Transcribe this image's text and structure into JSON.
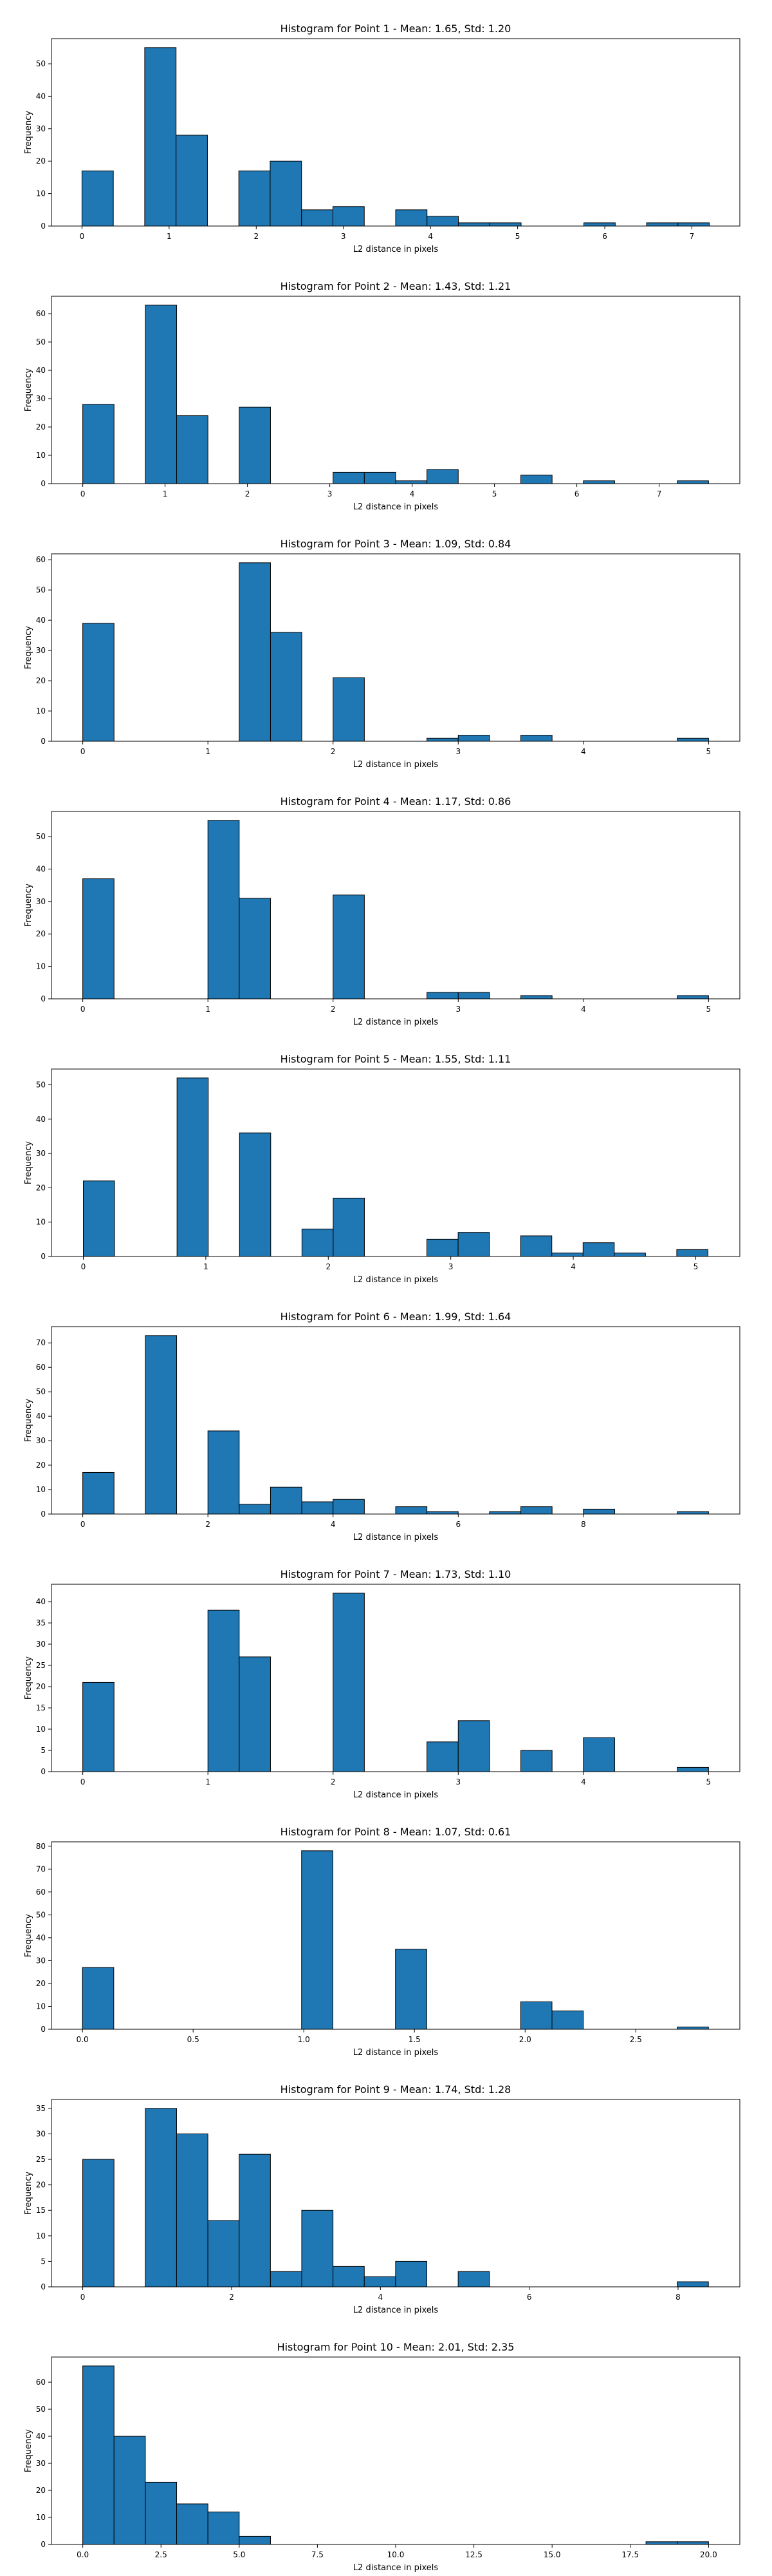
{
  "bar_color": "#1f77b4",
  "edge_color": "#000000",
  "chart_data": [
    {
      "type": "bar",
      "title": "Histogram for Point 1 - Mean: 1.65, Std: 1.20",
      "xlabel": "L2 distance in pixels",
      "ylabel": "Frequency",
      "grid": false,
      "xlim": [
        -0.35,
        7.55
      ],
      "ylim": [
        0,
        57.75
      ],
      "xticks": [
        0,
        1,
        2,
        3,
        4,
        5,
        6,
        7
      ],
      "yticks": [
        0,
        10,
        20,
        30,
        40,
        50
      ],
      "bin_edges": [
        0,
        0.36,
        0.72,
        1.08,
        1.44,
        1.8,
        2.16,
        2.52,
        2.88,
        3.24,
        3.6,
        3.96,
        4.32,
        4.68,
        5.04,
        5.4,
        5.76,
        6.12,
        6.48,
        6.84,
        7.2
      ],
      "counts": [
        17,
        0,
        55,
        28,
        0,
        17,
        20,
        5,
        6,
        0,
        5,
        3,
        1,
        1,
        0,
        0,
        1,
        0,
        1,
        1
      ]
    },
    {
      "type": "bar",
      "title": "Histogram for Point 2 - Mean: 1.43, Std: 1.21",
      "xlabel": "L2 distance in pixels",
      "ylabel": "Frequency",
      "grid": false,
      "xlim": [
        -0.38,
        7.98
      ],
      "ylim": [
        0,
        66.15
      ],
      "xticks": [
        0,
        1,
        2,
        3,
        4,
        5,
        6,
        7
      ],
      "yticks": [
        0,
        10,
        20,
        30,
        40,
        50,
        60
      ],
      "bin_edges": [
        0,
        0.38,
        0.76,
        1.14,
        1.52,
        1.9,
        2.28,
        2.66,
        3.04,
        3.42,
        3.8,
        4.18,
        4.56,
        4.94,
        5.32,
        5.7,
        6.08,
        6.46,
        6.84,
        7.22,
        7.6
      ],
      "counts": [
        28,
        0,
        63,
        24,
        0,
        27,
        0,
        0,
        4,
        4,
        1,
        5,
        0,
        0,
        3,
        0,
        1,
        0,
        0,
        1
      ]
    },
    {
      "type": "bar",
      "title": "Histogram for Point 3 - Mean: 1.09, Std: 0.84",
      "xlabel": "L2 distance in pixels",
      "ylabel": "Frequency",
      "grid": false,
      "xlim": [
        -0.25,
        5.25
      ],
      "ylim": [
        0,
        61.95
      ],
      "xticks": [
        0,
        1,
        2,
        3,
        4,
        5
      ],
      "yticks": [
        0,
        10,
        20,
        30,
        40,
        50,
        60
      ],
      "bin_edges": [
        0,
        0.25,
        0.5,
        0.75,
        1.0,
        1.25,
        1.5,
        1.75,
        2.0,
        2.25,
        2.5,
        2.75,
        3.0,
        3.25,
        3.5,
        3.75,
        4.0,
        4.25,
        4.5,
        4.75,
        5.0
      ],
      "counts": [
        39,
        0,
        0,
        0,
        0,
        59,
        36,
        0,
        21,
        0,
        0,
        1,
        2,
        0,
        2,
        0,
        0,
        0,
        0,
        1
      ]
    },
    {
      "type": "bar",
      "title": "Histogram for Point 4 - Mean: 1.17, Std: 0.86",
      "xlabel": "L2 distance in pixels",
      "ylabel": "Frequency",
      "grid": false,
      "xlim": [
        -0.25,
        5.25
      ],
      "ylim": [
        0,
        57.75
      ],
      "xticks": [
        0,
        1,
        2,
        3,
        4,
        5
      ],
      "yticks": [
        0,
        10,
        20,
        30,
        40,
        50
      ],
      "bin_edges": [
        0,
        0.25,
        0.5,
        0.75,
        1.0,
        1.25,
        1.5,
        1.75,
        2.0,
        2.25,
        2.5,
        2.75,
        3.0,
        3.25,
        3.5,
        3.75,
        4.0,
        4.25,
        4.5,
        4.75,
        5.0
      ],
      "counts": [
        37,
        0,
        0,
        0,
        55,
        31,
        0,
        0,
        32,
        0,
        0,
        2,
        2,
        0,
        1,
        0,
        0,
        0,
        0,
        1
      ]
    },
    {
      "type": "bar",
      "title": "Histogram for Point 5 - Mean: 1.55, Std: 1.11",
      "xlabel": "L2 distance in pixels",
      "ylabel": "Frequency",
      "grid": false,
      "xlim": [
        -0.26,
        5.36
      ],
      "ylim": [
        0,
        54.6
      ],
      "xticks": [
        0,
        1,
        2,
        3,
        4,
        5
      ],
      "yticks": [
        0,
        10,
        20,
        30,
        40,
        50
      ],
      "bin_edges": [
        0,
        0.255,
        0.51,
        0.765,
        1.02,
        1.275,
        1.53,
        1.785,
        2.04,
        2.295,
        2.55,
        2.805,
        3.06,
        3.315,
        3.57,
        3.825,
        4.08,
        4.335,
        4.59,
        4.845,
        5.1
      ],
      "counts": [
        22,
        0,
        0,
        52,
        0,
        36,
        0,
        8,
        17,
        0,
        0,
        5,
        7,
        0,
        6,
        1,
        4,
        1,
        0,
        2
      ]
    },
    {
      "type": "bar",
      "title": "Histogram for Point 6 - Mean: 1.99, Std: 1.64",
      "xlabel": "L2 distance in pixels",
      "ylabel": "Frequency",
      "grid": false,
      "xlim": [
        -0.5,
        10.5
      ],
      "ylim": [
        0,
        76.65
      ],
      "xticks": [
        0,
        2,
        4,
        6,
        8
      ],
      "yticks": [
        0,
        10,
        20,
        30,
        40,
        50,
        60,
        70
      ],
      "bin_edges": [
        0,
        0.5,
        1.0,
        1.5,
        2.0,
        2.5,
        3.0,
        3.5,
        4.0,
        4.5,
        5.0,
        5.5,
        6.0,
        6.5,
        7.0,
        7.5,
        8.0,
        8.5,
        9.0,
        9.5,
        10.0
      ],
      "counts": [
        17,
        0,
        73,
        0,
        34,
        4,
        11,
        5,
        6,
        0,
        3,
        1,
        0,
        1,
        3,
        0,
        2,
        0,
        0,
        1
      ]
    },
    {
      "type": "bar",
      "title": "Histogram for Point 7 - Mean: 1.73, Std: 1.10",
      "xlabel": "L2 distance in pixels",
      "ylabel": "Frequency",
      "grid": false,
      "xlim": [
        -0.25,
        5.25
      ],
      "ylim": [
        0,
        44.1
      ],
      "xticks": [
        0,
        1,
        2,
        3,
        4,
        5
      ],
      "yticks": [
        0,
        5,
        10,
        15,
        20,
        25,
        30,
        35,
        40
      ],
      "bin_edges": [
        0,
        0.25,
        0.5,
        0.75,
        1.0,
        1.25,
        1.5,
        1.75,
        2.0,
        2.25,
        2.5,
        2.75,
        3.0,
        3.25,
        3.5,
        3.75,
        4.0,
        4.25,
        4.5,
        4.75,
        5.0
      ],
      "counts": [
        21,
        0,
        0,
        0,
        38,
        27,
        0,
        0,
        42,
        0,
        0,
        7,
        12,
        0,
        5,
        0,
        8,
        0,
        0,
        1
      ]
    },
    {
      "type": "bar",
      "title": "Histogram for Point 8 - Mean: 1.07, Std: 0.61",
      "xlabel": "L2 distance in pixels",
      "ylabel": "Frequency",
      "grid": false,
      "xlim": [
        -0.14,
        2.97
      ],
      "ylim": [
        0,
        81.9
      ],
      "xticks": [
        0.0,
        0.5,
        1.0,
        1.5,
        2.0,
        2.5
      ],
      "xticklabels": [
        "0.0",
        "0.5",
        "1.0",
        "1.5",
        "2.0",
        "2.5"
      ],
      "yticks": [
        0,
        10,
        20,
        30,
        40,
        50,
        60,
        70,
        80
      ],
      "bin_edges": [
        0,
        0.1414,
        0.2828,
        0.4243,
        0.5657,
        0.7071,
        0.8485,
        0.9899,
        1.1314,
        1.2728,
        1.4142,
        1.5556,
        1.6971,
        1.8385,
        1.9799,
        2.1213,
        2.2627,
        2.4042,
        2.5456,
        2.687,
        2.8284
      ],
      "counts": [
        27,
        0,
        0,
        0,
        0,
        0,
        0,
        78,
        0,
        0,
        35,
        0,
        0,
        0,
        12,
        8,
        0,
        0,
        0,
        1
      ]
    },
    {
      "type": "bar",
      "title": "Histogram for Point 9 - Mean: 1.74, Std: 1.28",
      "xlabel": "L2 distance in pixels",
      "ylabel": "Frequency",
      "grid": false,
      "xlim": [
        -0.42,
        8.83
      ],
      "ylim": [
        0,
        36.75
      ],
      "xticks": [
        0,
        2,
        4,
        6,
        8
      ],
      "yticks": [
        0,
        5,
        10,
        15,
        20,
        25,
        30,
        35
      ],
      "bin_edges": [
        0,
        0.4204,
        0.8408,
        1.2612,
        1.6816,
        2.102,
        2.5224,
        2.9428,
        3.3632,
        3.7836,
        4.204,
        4.6244,
        5.0448,
        5.4652,
        5.8856,
        6.306,
        6.7264,
        7.1468,
        7.5672,
        7.9876,
        8.408
      ],
      "counts": [
        25,
        0,
        35,
        30,
        13,
        26,
        3,
        15,
        4,
        2,
        5,
        0,
        3,
        0,
        0,
        0,
        0,
        0,
        0,
        1
      ]
    },
    {
      "type": "bar",
      "title": "Histogram for Point 10 - Mean: 2.01, Std: 2.35",
      "xlabel": "L2 distance in pixels",
      "ylabel": "Frequency",
      "grid": false,
      "xlim": [
        -1.0,
        21.0
      ],
      "ylim": [
        0,
        69.3
      ],
      "xticks": [
        0.0,
        2.5,
        5.0,
        7.5,
        10.0,
        12.5,
        15.0,
        17.5,
        20.0
      ],
      "xticklabels": [
        "0.0",
        "2.5",
        "5.0",
        "7.5",
        "10.0",
        "12.5",
        "15.0",
        "17.5",
        "20.0"
      ],
      "yticks": [
        0,
        10,
        20,
        30,
        40,
        50,
        60
      ],
      "bin_edges": [
        0,
        1,
        2,
        3,
        4,
        5,
        6,
        7,
        8,
        9,
        10,
        11,
        12,
        13,
        14,
        15,
        16,
        17,
        18,
        19,
        20
      ],
      "counts": [
        66,
        40,
        23,
        15,
        12,
        3,
        0,
        0,
        0,
        0,
        0,
        0,
        0,
        0,
        0,
        0,
        0,
        0,
        1,
        1
      ]
    }
  ]
}
